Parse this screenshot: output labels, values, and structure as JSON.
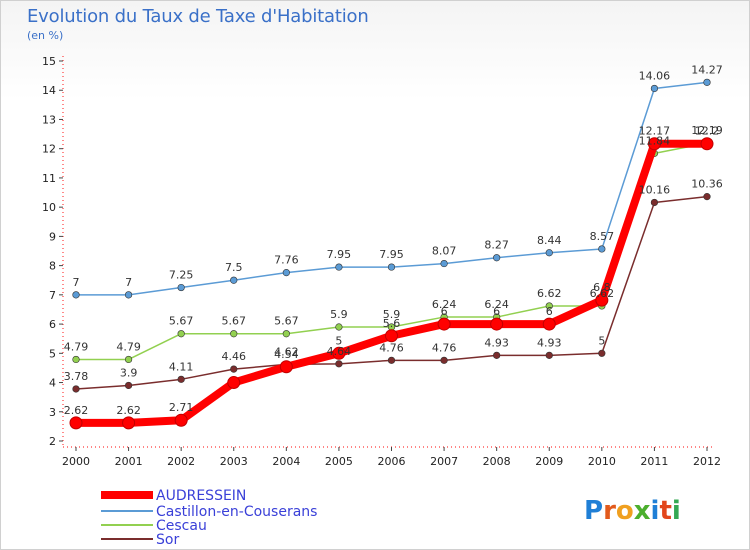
{
  "chart_data": {
    "type": "line",
    "title": "Evolution du Taux de Taxe d'Habitation",
    "subtitle": "(en %)",
    "x": [
      "2000",
      "2001",
      "2002",
      "2003",
      "2004",
      "2005",
      "2006",
      "2007",
      "2008",
      "2009",
      "2010",
      "2011",
      "2012"
    ],
    "ylim": [
      2,
      15
    ],
    "yticks": [
      2,
      3,
      4,
      5,
      6,
      7,
      8,
      9,
      10,
      11,
      12,
      13,
      14,
      15
    ],
    "grid": false,
    "legend_position": "bottom-left",
    "series": [
      {
        "name": "AUDRESSEIN",
        "color": "#ff0000",
        "values": [
          2.62,
          2.62,
          2.71,
          4.0,
          4.54,
          5.0,
          5.6,
          6.0,
          6.0,
          6.0,
          6.82,
          12.17,
          12.17
        ],
        "labels": [
          "2.62",
          "2.62",
          "2.71",
          "",
          "4.54",
          "5",
          "5.6",
          "6",
          "6",
          "6",
          "6.8",
          "12.17",
          "12.2"
        ]
      },
      {
        "name": "Castillon-en-Couserans",
        "color": "#5b9bd5",
        "values": [
          7,
          7,
          7.25,
          7.5,
          7.76,
          7.95,
          7.95,
          8.07,
          8.27,
          8.44,
          8.57,
          14.06,
          14.27
        ],
        "labels": [
          "7",
          "7",
          "7.25",
          "7.5",
          "7.76",
          "7.95",
          "7.95",
          "8.07",
          "8.27",
          "8.44",
          "8.57",
          "14.06",
          "14.27"
        ]
      },
      {
        "name": "Cescau",
        "color": "#92d050",
        "values": [
          4.79,
          4.79,
          5.67,
          5.67,
          5.67,
          5.9,
          5.9,
          6.24,
          6.24,
          6.62,
          6.62,
          11.84,
          12.19
        ],
        "labels": [
          "4.79",
          "4.79",
          "5.67",
          "5.67",
          "5.67",
          "5.9",
          "5.9",
          "6.24",
          "6.24",
          "6.62",
          "6.62",
          "11.84",
          "12.19"
        ]
      },
      {
        "name": "Sor",
        "color": "#7a2d2d",
        "values": [
          3.78,
          3.9,
          4.11,
          4.46,
          4.62,
          4.64,
          4.76,
          4.76,
          4.93,
          4.93,
          5.0,
          10.16,
          10.36
        ],
        "labels": [
          "3.78",
          "3.9",
          "4.11",
          "4.46",
          "4.62",
          "4.64",
          "4.76",
          "4.76",
          "4.93",
          "4.93",
          "5",
          "10.16",
          "10.36"
        ]
      }
    ]
  },
  "logo": {
    "text": "Proxiti"
  }
}
